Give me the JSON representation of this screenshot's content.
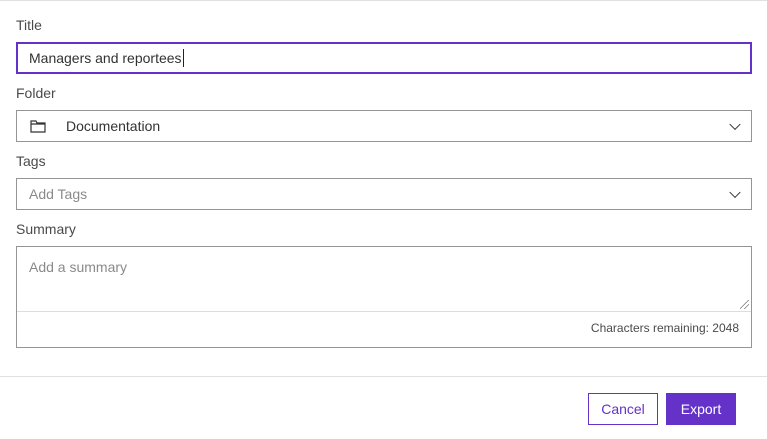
{
  "title": {
    "label": "Title",
    "value": "Managers and reportees"
  },
  "folder": {
    "label": "Folder",
    "value": "Documentation",
    "icon": "folder-icon"
  },
  "tags": {
    "label": "Tags",
    "placeholder": "Add Tags"
  },
  "summary": {
    "label": "Summary",
    "placeholder": "Add a summary",
    "chars_remaining": "Characters remaining: 2048"
  },
  "actions": {
    "cancel": "Cancel",
    "export": "Export"
  },
  "colors": {
    "accent": "#6532c9"
  }
}
